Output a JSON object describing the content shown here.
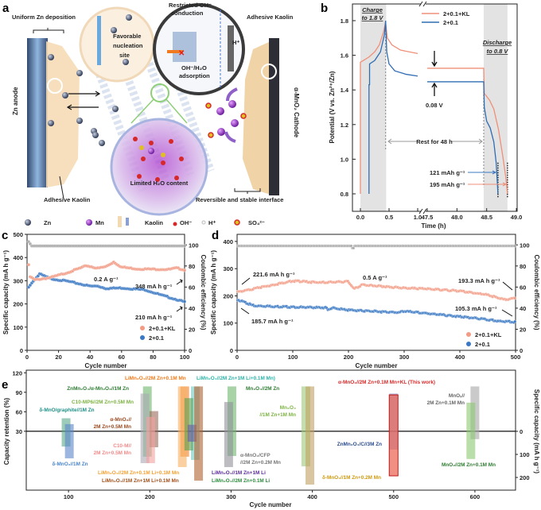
{
  "panel_labels": {
    "a": "a",
    "b": "b",
    "c": "c",
    "d": "d",
    "e": "e"
  },
  "schematic": {
    "uniform_zn": "Uniform Zn deposition",
    "zn_anode": "Zn anode",
    "favorable": [
      "Favorable",
      "nucleation",
      "site"
    ],
    "restricted": [
      "Restricted OH⁻",
      "conduction"
    ],
    "adsorption": [
      "OH⁻/H₂O",
      "adsorption"
    ],
    "h_plus": "H⁺",
    "adhesive_kaolin_top": "Adhesive Kaolin",
    "adhesive_kaolin_bottom": "Adhesive Kaolin",
    "cathode": "α-MnO₂ Cathode",
    "limited_h2o": "Limited H₂O content",
    "interface": "Reversible and stable  interface",
    "legend": [
      {
        "label": "Zn",
        "icon": "zn-sphere-icon",
        "color": "#4a5568"
      },
      {
        "label": "Mn",
        "icon": "mn-sphere-icon",
        "color": "#8e3bb0"
      },
      {
        "label": "Kaolin",
        "icon": "kaolin-icon",
        "color": "#f3d9b1"
      },
      {
        "label": "OH⁻",
        "icon": "hydroxide-icon",
        "color": "#d62828"
      },
      {
        "label": "H⁺",
        "icon": "proton-icon",
        "color": "#cccccc"
      },
      {
        "label": "SO₄²⁻",
        "icon": "sulfate-icon",
        "color": "#e0c020"
      }
    ]
  },
  "chart_data": [
    {
      "id": "b",
      "type": "line",
      "xlabel": "Time (h)",
      "ylabel": "Potential (V vs. Zn²⁺/Zn)",
      "x_axis_break": [
        1.0,
        47.5
      ],
      "xticks": [
        0.0,
        0.5,
        1.0,
        47.5,
        48.0,
        48.5,
        49.0
      ],
      "xtick_labels": [
        "0.0",
        "0.5",
        "1.0",
        "47.5",
        "48.0",
        "48.5",
        "49.0"
      ],
      "yticks": [
        0.8,
        1.0,
        1.2,
        1.4,
        1.6,
        1.8
      ],
      "ytick_labels": [
        "0.8",
        "1.0",
        "1.2",
        "1.4",
        "1.6",
        "1.8"
      ],
      "ylim": [
        0.75,
        1.85
      ],
      "shaded_regions": [
        [
          0.0,
          0.45
        ],
        [
          48.45,
          48.85
        ]
      ],
      "series": [
        {
          "name": "2+0.1+KL",
          "color": "#ef8f78",
          "points": [
            [
              0.0,
              0.8
            ],
            [
              0.0,
              1.56
            ],
            [
              0.05,
              1.57
            ],
            [
              0.15,
              1.59
            ],
            [
              0.25,
              1.62
            ],
            [
              0.33,
              1.66
            ],
            [
              0.4,
              1.73
            ],
            [
              0.44,
              1.79
            ],
            [
              0.47,
              1.7
            ],
            [
              0.55,
              1.66
            ],
            [
              0.7,
              1.63
            ],
            [
              1.0,
              1.61
            ],
            [
              47.5,
              1.525
            ],
            [
              48.45,
              1.525
            ],
            [
              48.46,
              1.38
            ],
            [
              48.55,
              1.34
            ],
            [
              48.62,
              1.29
            ],
            [
              48.7,
              1.17
            ],
            [
              48.77,
              1.02
            ],
            [
              48.82,
              0.9
            ],
            [
              48.85,
              0.8
            ]
          ]
        },
        {
          "name": "2+0.1",
          "color": "#2f6db3",
          "points": [
            [
              0.15,
              0.8
            ],
            [
              0.15,
              1.43
            ],
            [
              0.16,
              1.43
            ],
            [
              0.16,
              1.55
            ],
            [
              0.25,
              1.57
            ],
            [
              0.35,
              1.62
            ],
            [
              0.42,
              1.72
            ],
            [
              0.44,
              1.8
            ],
            [
              0.46,
              1.62
            ],
            [
              0.5,
              1.55
            ],
            [
              0.6,
              1.51
            ],
            [
              0.8,
              1.49
            ],
            [
              1.0,
              1.48
            ],
            [
              47.5,
              1.447
            ],
            [
              48.45,
              1.447
            ],
            [
              48.46,
              1.3
            ],
            [
              48.5,
              1.22
            ],
            [
              48.56,
              1.18
            ],
            [
              48.62,
              1.1
            ],
            [
              48.66,
              0.98
            ],
            [
              48.69,
              0.8
            ]
          ]
        }
      ],
      "annotations": {
        "charge": [
          "Charge",
          "to 1.8 V"
        ],
        "discharge": [
          "Discharge",
          "to 0.8 V"
        ],
        "delta_v": "0.08 V",
        "rest": "Rest for 48 h",
        "cap_blue": "121 mAh g⁻¹",
        "cap_kl": "195 mAh g⁻¹"
      }
    },
    {
      "id": "c",
      "type": "scatter",
      "xlabel": "Cycle number",
      "ylabel": "Specific capacity (mA h g⁻¹)",
      "y2label": "Coulombic efficiency (%)",
      "xlim": [
        0,
        100
      ],
      "ylim": [
        0,
        500
      ],
      "y2lim": [
        0,
        110
      ],
      "xticks": [
        0,
        20,
        40,
        60,
        80,
        100
      ],
      "yticks": [
        0,
        100,
        200,
        300,
        400,
        500
      ],
      "y2ticks": [
        0,
        20,
        40,
        60,
        80,
        100
      ],
      "n_cycles": 100,
      "series": [
        {
          "name": "2+0.1+KL",
          "color": "#f29b85",
          "axis": "left",
          "keypoints": [
            [
              1,
              368
            ],
            [
              2,
              318
            ],
            [
              5,
              305
            ],
            [
              15,
              315
            ],
            [
              25,
              335
            ],
            [
              38,
              366
            ],
            [
              45,
              355
            ],
            [
              50,
              362
            ],
            [
              55,
              382
            ],
            [
              60,
              360
            ],
            [
              70,
              352
            ],
            [
              90,
              350
            ],
            [
              95,
              356
            ],
            [
              100,
              348
            ]
          ]
        },
        {
          "name": "2+0.1",
          "color": "#3a78c2",
          "axis": "left",
          "keypoints": [
            [
              1,
              275
            ],
            [
              4,
              300
            ],
            [
              8,
              330
            ],
            [
              15,
              310
            ],
            [
              25,
              300
            ],
            [
              40,
              278
            ],
            [
              45,
              278
            ],
            [
              50,
              268
            ],
            [
              60,
              270
            ],
            [
              75,
              262
            ],
            [
              85,
              240
            ],
            [
              95,
              220
            ],
            [
              100,
              210
            ]
          ]
        },
        {
          "name": "Coulombic efficiency",
          "color": "#a6a6a6",
          "axis": "right",
          "keypoints": [
            [
              1,
              103
            ],
            [
              3,
              99
            ],
            [
              100,
              99
            ]
          ]
        }
      ],
      "annotations": {
        "rate": "0.2 A g⁻¹",
        "kl_final": "348 mA h g⁻¹",
        "blue_final": "210 mA h g⁻¹"
      },
      "legend": [
        "2+0.1+KL",
        "2+0.1"
      ],
      "legend_position": "bottom-right"
    },
    {
      "id": "d",
      "type": "scatter",
      "xlabel": "Cycle number",
      "ylabel": "Specific capacity (mA h g⁻¹)",
      "y2label": "Coulombic efficiency (%)",
      "xlim": [
        0,
        500
      ],
      "ylim": [
        0,
        426
      ],
      "y2lim": [
        0,
        110
      ],
      "xticks": [
        0,
        100,
        200,
        300,
        400,
        500
      ],
      "yticks": [
        0,
        100,
        200,
        300,
        400
      ],
      "y2ticks": [
        0,
        20,
        40,
        60,
        80,
        100
      ],
      "n_cycles": 500,
      "series": [
        {
          "name": "2+0.1+KL",
          "color": "#f29b85",
          "axis": "left",
          "keypoints": [
            [
              1,
              215
            ],
            [
              50,
              236
            ],
            [
              100,
              256
            ],
            [
              150,
              250
            ],
            [
              200,
              254
            ],
            [
              205,
              240
            ],
            [
              210,
              227
            ],
            [
              225,
              242
            ],
            [
              300,
              230
            ],
            [
              350,
              226
            ],
            [
              400,
              219
            ],
            [
              450,
              205
            ],
            [
              480,
              187
            ],
            [
              500,
              193
            ]
          ]
        },
        {
          "name": "2+0.1",
          "color": "#3a78c2",
          "axis": "left",
          "keypoints": [
            [
              1,
              187
            ],
            [
              30,
              165
            ],
            [
              100,
              160
            ],
            [
              160,
              158
            ],
            [
              163,
              150
            ],
            [
              170,
              157
            ],
            [
              200,
              149
            ],
            [
              290,
              140
            ],
            [
              300,
              145
            ],
            [
              400,
              125
            ],
            [
              435,
              118
            ],
            [
              470,
              108
            ],
            [
              500,
              105
            ]
          ]
        },
        {
          "name": "Coulombic efficiency",
          "color": "#a6a6a6",
          "axis": "right",
          "keypoints": [
            [
              1,
              99
            ],
            [
              206,
              99
            ],
            [
              208,
              95
            ],
            [
              210,
              99
            ],
            [
              500,
              99
            ]
          ]
        }
      ],
      "annotations": {
        "rate": "0.5 A g⁻¹",
        "kl_initial": "221.6 mA h g⁻¹",
        "blue_initial": "185.7 mA h g⁻¹",
        "kl_final": "193.3 mA h g⁻¹",
        "blue_final": "105.3 mA h g⁻¹"
      },
      "legend": [
        "2+0.1+KL",
        "2+0.1"
      ],
      "legend_position": "bottom-right"
    },
    {
      "id": "e",
      "type": "bar",
      "xlabel": "Cycle number",
      "ylabel": "Capacity retention (%)",
      "y2label": "Specific capacity (mA h g⁻¹)",
      "xlim": [
        48,
        650
      ],
      "ylim": [
        -60.6,
        124
      ],
      "y2lim": [
        255,
        -265
      ],
      "xticks": [
        100,
        200,
        300,
        400,
        500,
        600
      ],
      "yticks": [
        30,
        60,
        90,
        120
      ],
      "y2ticks": [
        0,
        100,
        200
      ],
      "reference_line": {
        "retention": 30,
        "capacity": 0
      },
      "bars": [
        {
          "label": [
            "δ-MnO/graphite//1M Zn"
          ],
          "cycles": 97,
          "retention": 50,
          "capacity": 66,
          "color": "#5aa88a",
          "label_color": "#1f8f88"
        },
        {
          "label": [
            "δ-MnO₂//1M Zn"
          ],
          "cycles": 101,
          "retention": 41,
          "capacity": 117,
          "color": "#5b86c9",
          "label_color": "#4a86c8"
        },
        {
          "label": [
            "ZnMn₂O₄/α-Mn₂O₃//1M Zn"
          ],
          "cycles": 197,
          "retention": 99,
          "capacity": 110,
          "color": "#6cb66c",
          "label_color": "#2e7d32"
        },
        {
          "label": [
            "C10-MP6//2M Zn+0.5M Mn"
          ],
          "cycles": 194,
          "retention": 88,
          "capacity": 138,
          "color": "#a8a8b2",
          "label_color": "#7cb342"
        },
        {
          "label": [
            "α-MnO₂//",
            "2M Zn+0.5M Mn"
          ],
          "cycles": 205,
          "retention": 61,
          "capacity": 69,
          "color": "#9a6a5a",
          "label_color": "#9a4a20"
        },
        {
          "label": [
            "C10-M//",
            "2M Zn+0.5M Mn"
          ],
          "cycles": 201,
          "retention": 52,
          "capacity": 138,
          "color": "#f5a0a0",
          "label_color": "#f08a8a"
        },
        {
          "label": [
            "LiMn₂O₄//2M Zn+0.1M Mn"
          ],
          "cycles": 243,
          "retention": 99,
          "capacity": 110,
          "color": "#f0802a",
          "label_color": "#f07a1a"
        },
        {
          "label": [
            "LiMn₂O₄//2M Zn+0.1M Li+0.1M Mn"
          ],
          "cycles": 240,
          "retention": 99,
          "capacity": 155,
          "color": "#f8b060",
          "label_color": "#f5a030"
        },
        {
          "label": [
            "LiMn₂O₄//2M Zn+1M Li+0.1M Mn)"
          ],
          "cycles": 256,
          "retention": 99,
          "capacity": 124,
          "color": "#70c8c0",
          "label_color": "#2ab3a8"
        },
        {
          "label": [
            "LiMn₂O₄//2M Zn+0.1M Li"
          ],
          "cycles": 248,
          "retention": 81,
          "capacity": 83,
          "color": "#5aa050",
          "label_color": "#2e8b3e"
        },
        {
          "label": [
            "LiMn₂O₄//1M Zn+1M Li"
          ],
          "cycles": 252,
          "retention": 40,
          "capacity": 45,
          "color": "#6a5aaa",
          "label_color": "#5b2a9a"
        },
        {
          "label": [
            "LiMn₂O₄//1M Zn+1M Li+0.1M Mn"
          ],
          "cycles": 260,
          "retention": 99,
          "capacity": 214,
          "color": "#b06030",
          "label_color": "#a0501a"
        },
        {
          "label": [
            "Mn₃O₄//2M Zn"
          ],
          "cycles": 301,
          "retention": 99,
          "capacity": 107,
          "color": "#6cb66c",
          "label_color": "#2e7d32"
        },
        {
          "label": [
            "α-MnO₂/CFP",
            "//2M Zn+0.2M Mn"
          ],
          "cycles": 297,
          "retention": 75,
          "capacity": 155,
          "color": "#909098",
          "label_color": "#777777"
        },
        {
          "label": [
            "Mn₃O₄",
            "//1M Zn+1M Mn"
          ],
          "cycles": 392,
          "retention": 99,
          "capacity": 152,
          "color": "#9cc87a",
          "label_color": "#7cb342"
        },
        {
          "label": [
            "δ-MnO₂//1M Zn+0.2M Mn"
          ],
          "cycles": 397,
          "retention": 99,
          "capacity": 231,
          "color": "#c0a060",
          "label_color": "#d09a10"
        },
        {
          "label": [
            "ZnMn₂O₄/C//3M Zn"
          ],
          "cycles": 500,
          "retention": 88,
          "capacity": 79,
          "color": "#7888c8",
          "label_color": "#2b4b8c"
        },
        {
          "label": [
            "α-MnO₂//2M Zn+0.1M Mn+KL (This work)"
          ],
          "cycles": 500,
          "retention": 86,
          "capacity": 193,
          "color": "#ec6a5a",
          "label_color": "#d62828"
        },
        {
          "label": [
            "MnOₓ//",
            "2M Zn+0.1M Mn"
          ],
          "cycles": 600,
          "retention": 99,
          "capacity": 34,
          "color": "#a6a6a6",
          "label_color": "#666666"
        },
        {
          "label": [
            "MnO₂//2M Zn+0.1M Mn"
          ],
          "cycles": 595,
          "retention": 74,
          "capacity": 120,
          "color": "#8cc870",
          "label_color": "#2e7d32"
        }
      ]
    }
  ]
}
